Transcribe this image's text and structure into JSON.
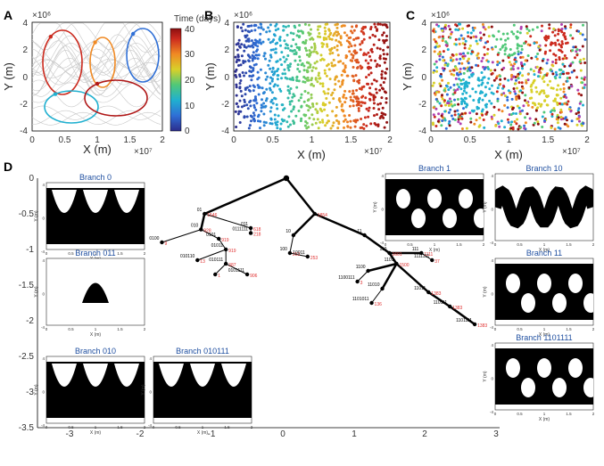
{
  "colors": {
    "colorbar": [
      "#2c2c8c",
      "#2f6fd6",
      "#20b0d0",
      "#50c878",
      "#d8d02a",
      "#f08a24",
      "#cc2a1e",
      "#8c0f10"
    ],
    "branch_fill": "#000000",
    "node_label": "#e03030",
    "trajectory_gray": "#c8c8c8",
    "branch_title": "#1f4fa0"
  },
  "panels": {
    "A": "A",
    "B": "B",
    "C": "C",
    "D": "D"
  },
  "top_plots": {
    "x_label": "X (m)",
    "y_label": "Y (m)",
    "x_ticks": [
      "0",
      "0.5",
      "1",
      "1.5",
      "2"
    ],
    "y_ticks": [
      "4",
      "2",
      "0",
      "-2",
      "-4"
    ],
    "x_exp": "×10⁷",
    "y_exp": "×10⁶",
    "colorbar_label": "Time (days)",
    "colorbar_ticks": [
      "40",
      "30",
      "20",
      "10",
      "0"
    ]
  },
  "tree_axis": {
    "x_ticks": [
      "-3",
      "-2",
      "-1",
      "0",
      "1",
      "2",
      "3"
    ],
    "y_ticks": [
      "0",
      "-0.5",
      "-1",
      "-1.5",
      "-2",
      "-2.5",
      "-3",
      "-3.5"
    ]
  },
  "chart_data": {
    "type": "tree",
    "x_range": [
      -3.5,
      3
    ],
    "y_range": [
      -3.5,
      0
    ],
    "nodes": [
      {
        "id": "root",
        "x": 0,
        "y": 0,
        "label": "",
        "count": ""
      },
      {
        "id": "0",
        "x": -1.15,
        "y": -0.5,
        "label": "01",
        "count": "1546"
      },
      {
        "id": "1",
        "x": 0.4,
        "y": -0.5,
        "label": "",
        "count": "1854"
      },
      {
        "id": "010",
        "x": -1.2,
        "y": -0.72,
        "label": "010",
        "count": "928"
      },
      {
        "id": "011",
        "x": -0.5,
        "y": -0.7,
        "label": "011",
        "count": "618"
      },
      {
        "id": "0111111",
        "x": -0.5,
        "y": -0.77,
        "label": "0111111",
        "count": "218"
      },
      {
        "id": "0100",
        "x": -1.75,
        "y": -0.9,
        "label": "0100",
        "count": "9"
      },
      {
        "id": "0101",
        "x": -0.95,
        "y": -0.85,
        "label": "0101",
        "count": "919"
      },
      {
        "id": "01011",
        "x": -0.85,
        "y": -1.0,
        "label": "01011",
        "count": "919"
      },
      {
        "id": "010110",
        "x": -1.25,
        "y": -1.15,
        "label": "010110",
        "count": "13"
      },
      {
        "id": "010111",
        "x": -0.85,
        "y": -1.2,
        "label": "010111",
        "count": "387"
      },
      {
        "id": "0101111",
        "x": -0.55,
        "y": -1.35,
        "label": "0101111",
        "count": "906"
      },
      {
        "id": "01011111",
        "x": -1.0,
        "y": -1.35,
        "label": "",
        "count": "1"
      },
      {
        "id": "10",
        "x": 0.1,
        "y": -0.8,
        "label": "10",
        "count": ""
      },
      {
        "id": "100",
        "x": 0.05,
        "y": -1.05,
        "label": "100",
        "count": "253"
      },
      {
        "id": "10011",
        "x": 0.3,
        "y": -1.1,
        "label": "10011",
        "count": "253"
      },
      {
        "id": "11",
        "x": 1.1,
        "y": -0.8,
        "label": "11",
        "count": ""
      },
      {
        "id": "110",
        "x": 1.45,
        "y": -1.05,
        "label": "110",
        "count": "1601"
      },
      {
        "id": "111",
        "x": 1.9,
        "y": -1.05,
        "label": "111",
        "count": "1111"
      },
      {
        "id": "1111111",
        "x": 2.05,
        "y": -1.15,
        "label": "1111111",
        "count": "37"
      },
      {
        "id": "1101",
        "x": 1.55,
        "y": -1.2,
        "label": "1101",
        "count": "1500"
      },
      {
        "id": "1100",
        "x": 1.15,
        "y": -1.3,
        "label": "1100",
        "count": ""
      },
      {
        "id": "1100111",
        "x": 1.0,
        "y": -1.45,
        "label": "1100111",
        "count": "3"
      },
      {
        "id": "11010",
        "x": 1.35,
        "y": -1.55,
        "label": "11010",
        "count": ""
      },
      {
        "id": "1101011",
        "x": 1.2,
        "y": -1.75,
        "label": "1101011",
        "count": "136"
      },
      {
        "id": "11011",
        "x": 2.0,
        "y": -1.6,
        "label": "11011",
        "count": "1383"
      },
      {
        "id": "110111",
        "x": 2.3,
        "y": -1.8,
        "label": "110111",
        "count": "1383"
      },
      {
        "id": "1101111",
        "x": 2.65,
        "y": -2.05,
        "label": "1101111",
        "count": "1383"
      }
    ],
    "edges": [
      [
        "root",
        "0"
      ],
      [
        "root",
        "1"
      ],
      [
        "0",
        "010"
      ],
      [
        "0",
        "011"
      ],
      [
        "011",
        "0111111"
      ],
      [
        "010",
        "0100"
      ],
      [
        "010",
        "0101"
      ],
      [
        "0101",
        "01011"
      ],
      [
        "01011",
        "010110"
      ],
      [
        "01011",
        "010111"
      ],
      [
        "010111",
        "0101111"
      ],
      [
        "010111",
        "01011111"
      ],
      [
        "1",
        "10"
      ],
      [
        "10",
        "100"
      ],
      [
        "100",
        "10011"
      ],
      [
        "1",
        "11"
      ],
      [
        "11",
        "110"
      ],
      [
        "110",
        "111"
      ],
      [
        "111",
        "1111111"
      ],
      [
        "110",
        "1101"
      ],
      [
        "1101",
        "1100"
      ],
      [
        "1100",
        "1100111"
      ],
      [
        "1101",
        "11010"
      ],
      [
        "11010",
        "1101011"
      ],
      [
        "1101",
        "11011"
      ],
      [
        "11011",
        "110111"
      ],
      [
        "110111",
        "1101111"
      ]
    ],
    "branches": [
      {
        "name": "Branch 0",
        "pattern": "lobes-down"
      },
      {
        "name": "Branch 011",
        "pattern": "single"
      },
      {
        "name": "Branch 010",
        "pattern": "lobes-down"
      },
      {
        "name": "Branch 010111",
        "pattern": "lobes-down"
      },
      {
        "name": "Branch 1",
        "pattern": "holes"
      },
      {
        "name": "Branch 10",
        "pattern": "wave"
      },
      {
        "name": "Branch 11",
        "pattern": "holes"
      },
      {
        "name": "Branch 1101111",
        "pattern": "holes"
      }
    ]
  }
}
